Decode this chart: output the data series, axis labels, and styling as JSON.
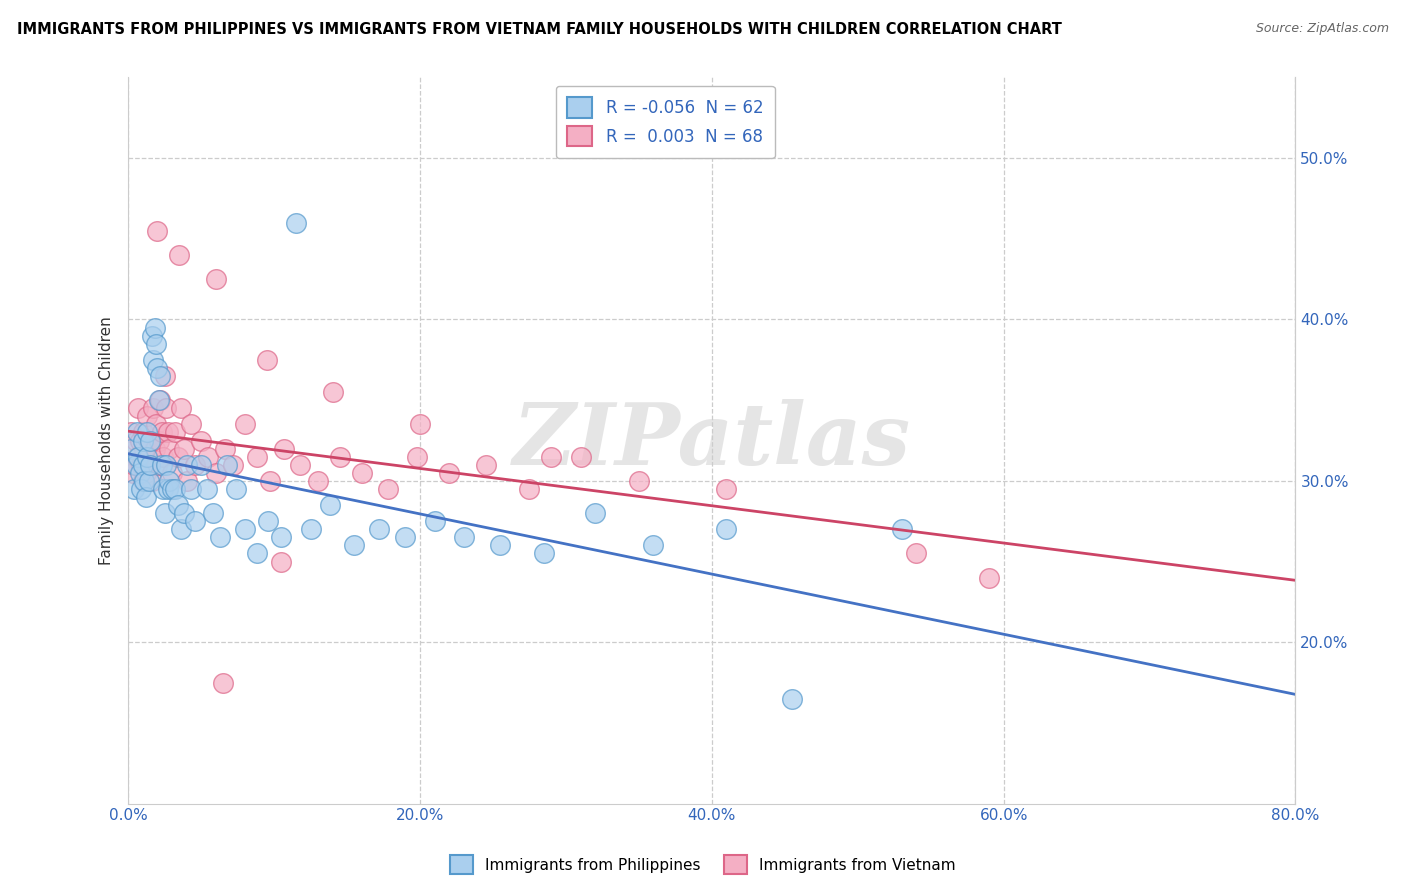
{
  "title": "IMMIGRANTS FROM PHILIPPINES VS IMMIGRANTS FROM VIETNAM FAMILY HOUSEHOLDS WITH CHILDREN CORRELATION CHART",
  "source": "Source: ZipAtlas.com",
  "ylabel": "Family Households with Children",
  "xlim": [
    0.0,
    0.8
  ],
  "ylim": [
    0.1,
    0.55
  ],
  "xtick_labels": [
    "0.0%",
    "20.0%",
    "40.0%",
    "60.0%",
    "80.0%"
  ],
  "xtick_vals": [
    0.0,
    0.2,
    0.4,
    0.6,
    0.8
  ],
  "ytick_labels": [
    "20.0%",
    "30.0%",
    "40.0%",
    "50.0%"
  ],
  "ytick_vals": [
    0.2,
    0.3,
    0.4,
    0.5
  ],
  "philippines_color": "#aacfee",
  "vietnam_color": "#f4afc4",
  "philippines_edge": "#5599cc",
  "vietnam_edge": "#dd6688",
  "trend_philippines": "#4472c4",
  "trend_vietnam": "#cc4466",
  "legend_R_philippines": "-0.056",
  "legend_N_philippines": "62",
  "legend_R_vietnam": "0.003",
  "legend_N_vietnam": "68",
  "watermark": "ZIPatlas",
  "philippines_x": [
    0.002,
    0.004,
    0.005,
    0.006,
    0.007,
    0.008,
    0.009,
    0.01,
    0.01,
    0.011,
    0.012,
    0.013,
    0.013,
    0.014,
    0.015,
    0.015,
    0.016,
    0.017,
    0.018,
    0.019,
    0.02,
    0.021,
    0.022,
    0.023,
    0.024,
    0.025,
    0.026,
    0.027,
    0.028,
    0.03,
    0.032,
    0.034,
    0.036,
    0.038,
    0.04,
    0.043,
    0.046,
    0.05,
    0.054,
    0.058,
    0.063,
    0.068,
    0.074,
    0.08,
    0.088,
    0.096,
    0.105,
    0.115,
    0.125,
    0.138,
    0.155,
    0.172,
    0.19,
    0.21,
    0.23,
    0.255,
    0.285,
    0.32,
    0.36,
    0.41,
    0.455,
    0.53
  ],
  "philippines_y": [
    0.32,
    0.295,
    0.31,
    0.33,
    0.315,
    0.305,
    0.295,
    0.31,
    0.325,
    0.3,
    0.29,
    0.315,
    0.33,
    0.3,
    0.31,
    0.325,
    0.39,
    0.375,
    0.395,
    0.385,
    0.37,
    0.35,
    0.365,
    0.31,
    0.295,
    0.28,
    0.31,
    0.295,
    0.3,
    0.295,
    0.295,
    0.285,
    0.27,
    0.28,
    0.31,
    0.295,
    0.275,
    0.31,
    0.295,
    0.28,
    0.265,
    0.31,
    0.295,
    0.27,
    0.255,
    0.275,
    0.265,
    0.46,
    0.27,
    0.285,
    0.26,
    0.27,
    0.265,
    0.275,
    0.265,
    0.26,
    0.255,
    0.28,
    0.26,
    0.27,
    0.165,
    0.27
  ],
  "vietnam_x": [
    0.002,
    0.003,
    0.004,
    0.005,
    0.006,
    0.007,
    0.008,
    0.009,
    0.01,
    0.01,
    0.011,
    0.012,
    0.013,
    0.014,
    0.015,
    0.016,
    0.017,
    0.018,
    0.019,
    0.02,
    0.021,
    0.022,
    0.023,
    0.024,
    0.025,
    0.026,
    0.027,
    0.028,
    0.03,
    0.032,
    0.034,
    0.036,
    0.038,
    0.04,
    0.043,
    0.046,
    0.05,
    0.055,
    0.06,
    0.066,
    0.072,
    0.08,
    0.088,
    0.097,
    0.107,
    0.118,
    0.13,
    0.145,
    0.16,
    0.178,
    0.198,
    0.22,
    0.245,
    0.275,
    0.31,
    0.35,
    0.02,
    0.035,
    0.06,
    0.095,
    0.14,
    0.2,
    0.29,
    0.41,
    0.105,
    0.065,
    0.54,
    0.59
  ],
  "vietnam_y": [
    0.33,
    0.305,
    0.31,
    0.325,
    0.315,
    0.345,
    0.325,
    0.31,
    0.3,
    0.33,
    0.32,
    0.305,
    0.34,
    0.31,
    0.325,
    0.3,
    0.345,
    0.32,
    0.335,
    0.31,
    0.325,
    0.35,
    0.33,
    0.315,
    0.365,
    0.345,
    0.33,
    0.32,
    0.305,
    0.33,
    0.315,
    0.345,
    0.32,
    0.3,
    0.335,
    0.31,
    0.325,
    0.315,
    0.305,
    0.32,
    0.31,
    0.335,
    0.315,
    0.3,
    0.32,
    0.31,
    0.3,
    0.315,
    0.305,
    0.295,
    0.315,
    0.305,
    0.31,
    0.295,
    0.315,
    0.3,
    0.455,
    0.44,
    0.425,
    0.375,
    0.355,
    0.335,
    0.315,
    0.295,
    0.25,
    0.175,
    0.255,
    0.24
  ]
}
